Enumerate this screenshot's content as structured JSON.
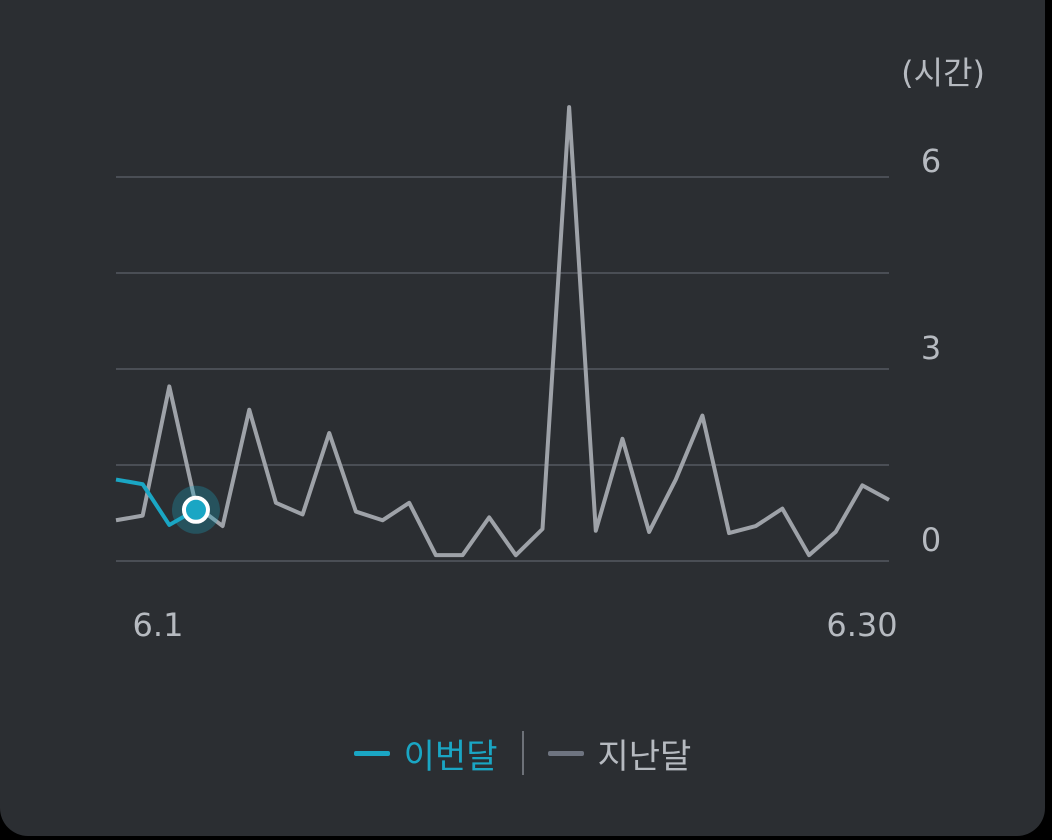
{
  "chart_data": {
    "type": "line",
    "unit_label": "(시간)",
    "x_start_label": "6.1",
    "x_end_label": "6.30",
    "y_ticks": [
      "6",
      "3",
      "0"
    ],
    "ylim": [
      -0.4,
      6.2
    ],
    "series": [
      {
        "name": "이번달",
        "color": "#1aa6c4",
        "values": [
          1.0,
          0.92,
          0.22,
          0.48
        ]
      },
      {
        "name": "지난달",
        "color": "#9ea2a8",
        "values": [
          0.3,
          0.38,
          2.6,
          0.55,
          0.2,
          2.2,
          0.6,
          0.4,
          1.8,
          0.45,
          0.3,
          0.6,
          -0.3,
          -0.3,
          0.35,
          -0.3,
          0.15,
          7.4,
          0.12,
          1.7,
          0.1,
          1.0,
          2.1,
          0.08,
          0.2,
          0.5,
          -0.3,
          0.1,
          0.9,
          0.65
        ]
      }
    ],
    "highlight_point": {
      "series": "이번달",
      "index": 3
    },
    "legend": [
      {
        "label": "이번달",
        "color": "#1aa6c4"
      },
      {
        "label": "지난달",
        "color": "#6e7480"
      }
    ]
  }
}
